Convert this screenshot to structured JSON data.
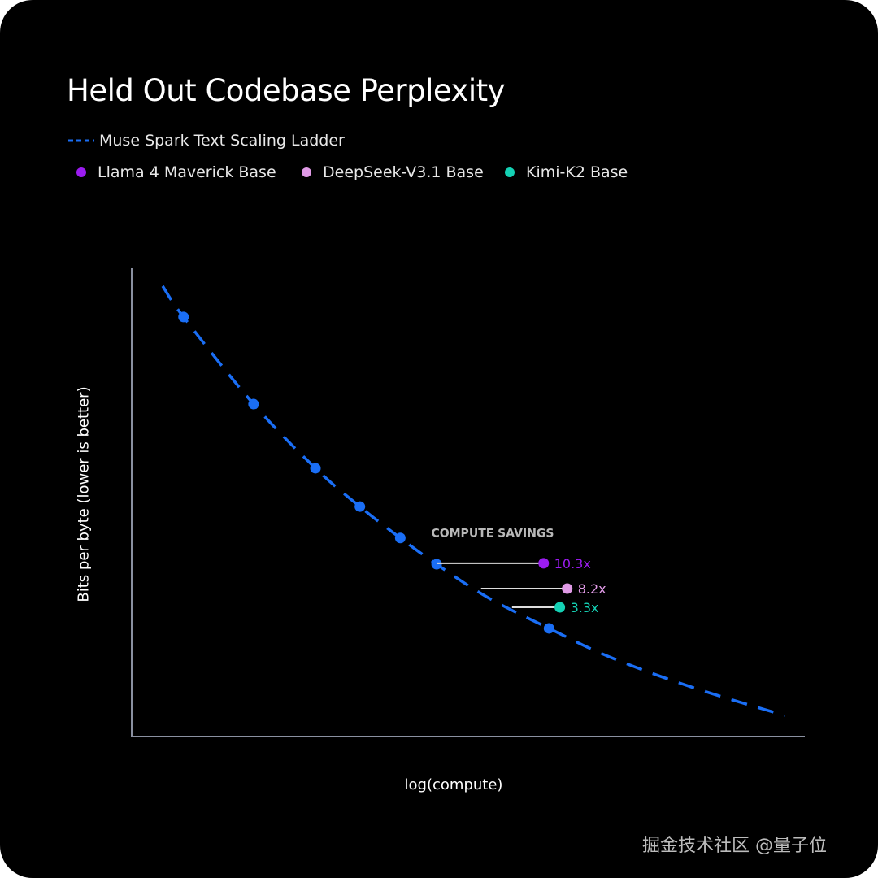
{
  "chart_data": {
    "type": "scatter",
    "title": "Held Out Codebase Perplexity",
    "xlabel": "log(compute)",
    "ylabel": "Bits per byte (lower is better)",
    "xlim": [
      0,
      100
    ],
    "ylim": [
      0,
      100
    ],
    "grid": false,
    "legend_placement": "top-left",
    "legend": [
      {
        "name": "Muse Spark Text Scaling Ladder",
        "style": "dashed-line",
        "color": "#1a6ef5"
      },
      {
        "name": "Llama 4 Maverick Base",
        "style": "dot",
        "color": "#9b1cf0"
      },
      {
        "name": "DeepSeek-V3.1 Base",
        "style": "dot",
        "color": "#e09ae6"
      },
      {
        "name": "Kimi-K2 Base",
        "style": "dot",
        "color": "#14d1b4"
      }
    ],
    "ladder_curve": {
      "x": [
        4.6,
        7.7,
        18.1,
        27.3,
        33.9,
        39.9,
        45.3,
        52.9,
        62.0,
        71.0,
        83.1,
        97.0
      ],
      "y": [
        96.2,
        89.6,
        71.0,
        57.3,
        49.1,
        42.4,
        36.8,
        29.7,
        23.1,
        17.0,
        10.6,
        4.5
      ]
    },
    "ladder_points": {
      "x": [
        7.7,
        18.1,
        27.3,
        33.9,
        39.9,
        45.3,
        62.0
      ],
      "y": [
        89.6,
        71.0,
        57.3,
        49.1,
        42.4,
        36.8,
        23.1
      ]
    },
    "annotation_title": "COMPUTE SAVINGS",
    "baselines": [
      {
        "name": "Llama 4 Maverick Base",
        "x": 61.2,
        "y": 37.0,
        "ladder_x": 45.3,
        "savings": "10.3x",
        "color": "#9b1cf0"
      },
      {
        "name": "DeepSeek-V3.1 Base",
        "x": 64.7,
        "y": 31.6,
        "ladder_x": 51.9,
        "savings": "8.2x",
        "color": "#e09ae6"
      },
      {
        "name": "Kimi-K2 Base",
        "x": 63.6,
        "y": 27.6,
        "ladder_x": 56.5,
        "savings": "3.3x",
        "color": "#14d1b4"
      }
    ],
    "ladder_color": "#1a6ef5",
    "axis_color": "#8a90a0"
  },
  "watermark": "掘金技术社区 @量子位"
}
